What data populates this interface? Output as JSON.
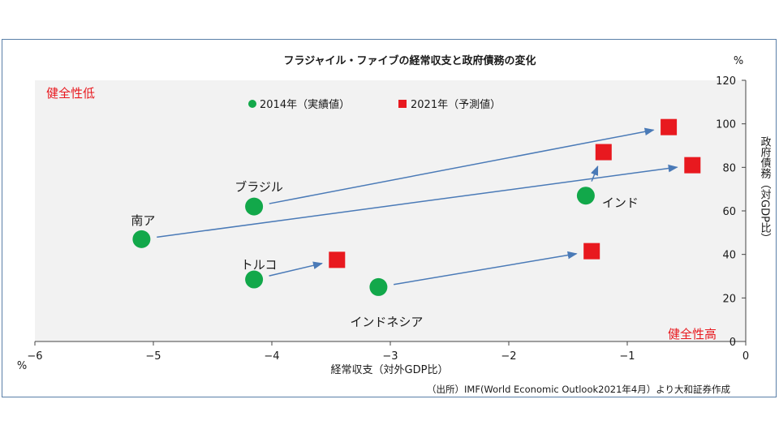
{
  "chart_data": {
    "type": "scatter",
    "title": "フラジャイル・ファイブの経常収支と政府債務の変化",
    "xlabel": "経常収支（対外GDP比）",
    "ylabel": "政府債務（対GDP比）",
    "x_unit": "%",
    "y_unit": "%",
    "xlim": [
      -6,
      0
    ],
    "ylim": [
      0,
      120
    ],
    "xticks": [
      -6,
      -5,
      -4,
      -3,
      -2,
      -1,
      0
    ],
    "yticks": [
      0,
      20,
      40,
      60,
      80,
      100,
      120
    ],
    "xtick_labels": [
      "−6",
      "−5",
      "−4",
      "−3",
      "−2",
      "−1",
      "0"
    ],
    "ytick_labels": [
      "0",
      "20",
      "40",
      "60",
      "80",
      "100",
      "120"
    ],
    "corner_top_left": "健全性低",
    "corner_bottom_right": "健全性高",
    "source": "（出所）IMF(World Economic Outlook2021年4月）より大和証券作成",
    "colors": {
      "series_2014": "#12a84a",
      "series_2021": "#e8191f",
      "arrow": "#4a7ab7",
      "corner_label": "#e8191f",
      "plot_bg": "#f2f2f2"
    },
    "series": [
      {
        "name": "2014年（実績値）",
        "marker": "circle",
        "points": [
          {
            "label": "南ア",
            "x": -5.1,
            "y": 47
          },
          {
            "label": "ブラジル",
            "x": -4.15,
            "y": 62
          },
          {
            "label": "トルコ",
            "x": -4.15,
            "y": 28.5
          },
          {
            "label": "インドネシア",
            "x": -3.1,
            "y": 25
          },
          {
            "label": "インド",
            "x": -1.35,
            "y": 67
          }
        ]
      },
      {
        "name": "2021年（予測値）",
        "marker": "square",
        "points": [
          {
            "label": "南ア",
            "x": -0.45,
            "y": 81
          },
          {
            "label": "ブラジル",
            "x": -0.65,
            "y": 98.5
          },
          {
            "label": "トルコ",
            "x": -3.45,
            "y": 37.5
          },
          {
            "label": "インドネシア",
            "x": -1.3,
            "y": 41.5
          },
          {
            "label": "インド",
            "x": -1.2,
            "y": 87
          }
        ]
      }
    ]
  }
}
